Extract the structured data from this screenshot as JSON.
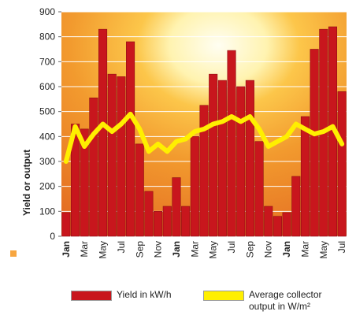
{
  "chart_data": {
    "type": "bar",
    "y_label": "Yield or output",
    "categories": [
      "Jan",
      null,
      "Mar",
      null,
      "May",
      null,
      "Jul",
      null,
      "Sep",
      null,
      "Nov",
      null,
      "Jan",
      null,
      "Mar",
      null,
      "May",
      null,
      "Jul",
      null,
      "Sep",
      null,
      "Nov",
      null,
      "Jan",
      null,
      "Mar",
      null,
      "May",
      null,
      "Jul"
    ],
    "series": [
      {
        "name": "Yield in kW/h",
        "color": "#c8161d",
        "values": [
          95,
          450,
          430,
          555,
          830,
          650,
          640,
          780,
          370,
          180,
          100,
          120,
          235,
          120,
          400,
          525,
          650,
          625,
          745,
          600,
          625,
          380,
          120,
          80,
          95,
          240,
          480,
          750,
          830,
          840,
          580
        ]
      },
      {
        "name": "Average collector output in W/m²",
        "color": "#ffef00",
        "type": "line",
        "values": [
          300,
          440,
          360,
          410,
          450,
          420,
          450,
          490,
          430,
          340,
          370,
          340,
          380,
          390,
          420,
          430,
          450,
          460,
          480,
          460,
          480,
          430,
          360,
          380,
          400,
          450,
          430,
          410,
          420,
          440,
          370
        ]
      }
    ],
    "ylim": [
      0,
      900
    ],
    "yticks": [
      0,
      100,
      200,
      300,
      400,
      500,
      600,
      700,
      800,
      900
    ],
    "grid": true
  }
}
